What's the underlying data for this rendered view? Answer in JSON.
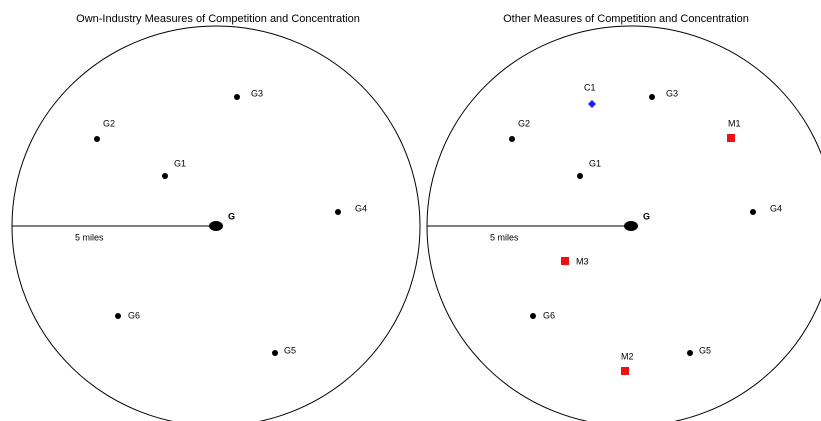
{
  "panels": [
    {
      "title": "Own-Industry Measures of Competition and Concentration",
      "center_label": "G",
      "radius_label": "5 miles",
      "points": [
        "G1",
        "G2",
        "G3",
        "G4",
        "G5",
        "G6"
      ]
    },
    {
      "title": "Other Measures of Competition and Concentration",
      "center_label": "G",
      "radius_label": "5 miles",
      "points": [
        "G1",
        "G2",
        "G3",
        "G4",
        "G5",
        "G6"
      ],
      "other_points": [
        "C1",
        "M1",
        "M2",
        "M3"
      ]
    }
  ]
}
